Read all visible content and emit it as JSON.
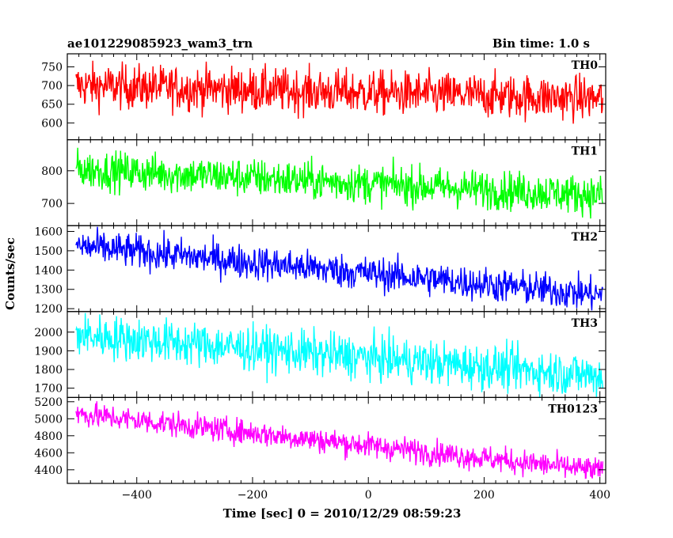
{
  "header": {
    "title": "ae101229085923_wam3_trn",
    "bin_time": "Bin time: 1.0 s"
  },
  "axes": {
    "xlabel": "Time [sec] 0 = 2010/12/29 08:59:23",
    "ylabel": "Counts/sec"
  },
  "chart_data": {
    "type": "line",
    "x_range": [
      -520,
      410
    ],
    "x_ticks": [
      -400,
      -200,
      0,
      200,
      400
    ],
    "bin_time_s": 1.0,
    "panels": [
      {
        "name": "TH0",
        "color": "#ff0000",
        "ylim": [
          555,
          785
        ],
        "yticks": [
          600,
          650,
          700,
          750
        ],
        "trend_start": 700,
        "trend_end": 665,
        "noise": 30
      },
      {
        "name": "TH1",
        "color": "#00ff00",
        "ylim": [
          632,
          895
        ],
        "yticks": [
          700,
          800
        ],
        "trend_start": 805,
        "trend_end": 725,
        "noise": 30
      },
      {
        "name": "TH2",
        "color": "#0000ff",
        "ylim": [
          1185,
          1630
        ],
        "yticks": [
          1200,
          1300,
          1400,
          1500,
          1600
        ],
        "trend_start": 1525,
        "trend_end": 1270,
        "noise": 45
      },
      {
        "name": "TH3",
        "color": "#00ffff",
        "ylim": [
          1650,
          2110
        ],
        "yticks": [
          1700,
          1800,
          1900,
          2000
        ],
        "trend_start": 1985,
        "trend_end": 1765,
        "noise": 60
      },
      {
        "name": "TH0123",
        "color": "#ff00ff",
        "ylim": [
          4240,
          5250
        ],
        "yticks": [
          4400,
          4600,
          4800,
          5000,
          5200
        ],
        "trend_start": 5060,
        "trend_end": 4385,
        "noise": 75
      }
    ]
  }
}
